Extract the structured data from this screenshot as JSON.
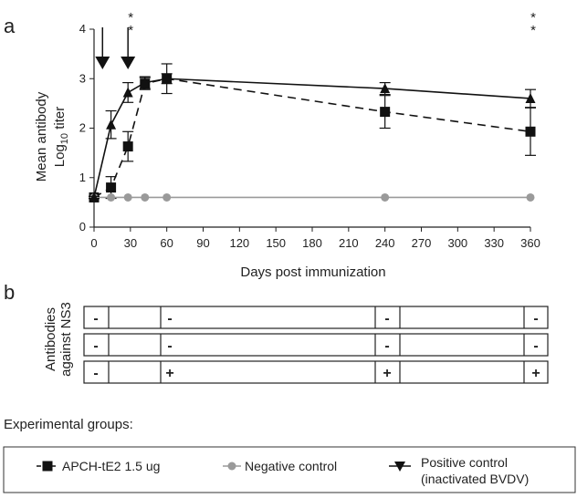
{
  "panel_a": {
    "label": "a",
    "ylabel_line1": "Mean antibody",
    "ylabel_line2_prefix": "Log",
    "ylabel_line2_sub": "10",
    "ylabel_line2_suffix": " titer",
    "xlabel": "Days post immunization",
    "significance_mark": "*"
  },
  "panel_b": {
    "label": "b",
    "ylabel_line1": "Antibodies",
    "ylabel_line2": "against NS3",
    "rows": [
      [
        "-",
        "-",
        "-",
        "-"
      ],
      [
        "-",
        "-",
        "-",
        "-"
      ],
      [
        "-",
        "+",
        "+",
        "+"
      ]
    ]
  },
  "legend": {
    "title": "Experimental groups:",
    "items": [
      {
        "label": "APCH-tE2 1.5 ug",
        "marker": "square",
        "line": "dashed"
      },
      {
        "label": "Negative control",
        "marker": "circle",
        "line": "solid-gray"
      },
      {
        "label": "Positive control",
        "label2": "(inactivated BVDV)",
        "marker": "triangle",
        "line": "solid"
      }
    ]
  },
  "chart_data": {
    "type": "line",
    "x_ticks": [
      0,
      30,
      60,
      90,
      120,
      150,
      180,
      210,
      240,
      270,
      300,
      330,
      360
    ],
    "y_ticks": [
      0,
      1,
      2,
      3,
      4
    ],
    "xlim": [
      0,
      360
    ],
    "ylim": [
      0,
      4
    ],
    "immunization_days": [
      7,
      28
    ],
    "significance_days": [
      28,
      360
    ],
    "colors": {
      "line": "#111111",
      "negative": "#9a9a9a"
    },
    "series": [
      {
        "name": "APCH-tE2 1.5 ug",
        "marker": "square",
        "x": [
          0,
          14,
          28,
          42,
          60,
          240,
          360
        ],
        "y": [
          0.6,
          0.8,
          1.63,
          2.9,
          3.0,
          2.33,
          1.93
        ],
        "err": [
          0.02,
          0.22,
          0.3,
          0.12,
          0.3,
          0.33,
          0.48
        ]
      },
      {
        "name": "Negative control",
        "marker": "circle",
        "x": [
          0,
          14,
          28,
          42,
          60,
          240,
          360
        ],
        "y": [
          0.6,
          0.6,
          0.6,
          0.6,
          0.6,
          0.6,
          0.6
        ],
        "err": [
          0,
          0,
          0,
          0,
          0,
          0,
          0
        ]
      },
      {
        "name": "Positive control",
        "marker": "triangle",
        "x": [
          0,
          14,
          28,
          42,
          60,
          240,
          360
        ],
        "y": [
          0.6,
          2.07,
          2.72,
          2.92,
          3.0,
          2.8,
          2.6
        ],
        "err": [
          0.02,
          0.28,
          0.2,
          0.12,
          0.1,
          0.12,
          0.18
        ]
      }
    ]
  }
}
